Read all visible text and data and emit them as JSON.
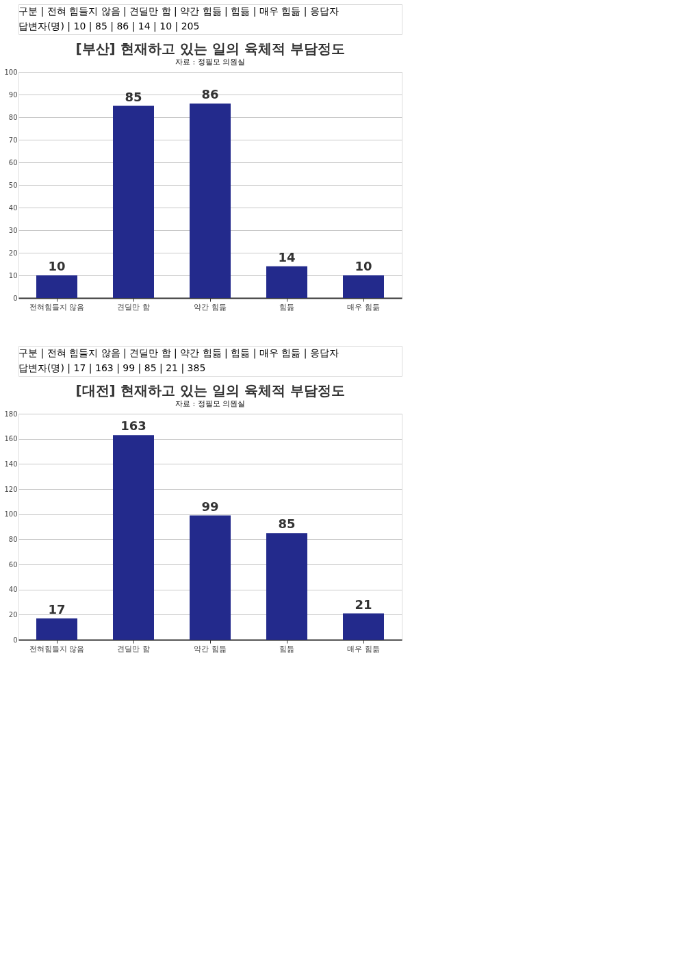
{
  "chart_data": [
    {
      "type": "bar",
      "title": "[부산] 현재하고 있는 일의 육체적 부담정도",
      "categories": [
        "전혀힘들지 않음",
        "견딜만 함",
        "약간 힘듦",
        "힘듦",
        "매우 힘듦"
      ],
      "values": [
        10,
        85,
        86,
        14,
        10
      ],
      "color": "#232a8c",
      "ylim": [
        0,
        100
      ],
      "yticks": [
        0,
        10,
        20,
        30,
        40,
        50,
        60,
        70,
        80,
        90,
        100
      ],
      "grid": "y",
      "data_labels": true,
      "annotations": [
        "자료 : 정필모 의원실",
        "구분 | 전혀 힘들지 않음 | 견딜만 함 | 약간 힘듦 | 힘듦 | 매우 힘듦 | 응답자",
        "답변자(명) | 10 | 85 | 86 | 14 | 10 | 205"
      ]
    },
    {
      "type": "bar",
      "title": "[대전] 현재하고 있는 일의 육체적 부담정도",
      "categories": [
        "전혀힘들지 않음",
        "견딜만 함",
        "약간 힘듦",
        "힘듦",
        "매우 힘듦"
      ],
      "values": [
        17,
        163,
        99,
        85,
        21
      ],
      "color": "#232a8c",
      "ylim": [
        0,
        180
      ],
      "yticks": [
        0,
        20,
        40,
        60,
        80,
        100,
        120,
        140,
        160,
        180
      ],
      "grid": "y",
      "data_labels": true,
      "annotations": [
        "자료 : 정필모 의원실",
        "구분 | 전혀 힘들지 않음 | 견딜만 함 | 약간 힘듦 | 힘듦 | 매우 힘듦 | 응답자",
        "답변자(명) | 17 | 163 | 99 | 85 | 21 | 385"
      ]
    }
  ]
}
